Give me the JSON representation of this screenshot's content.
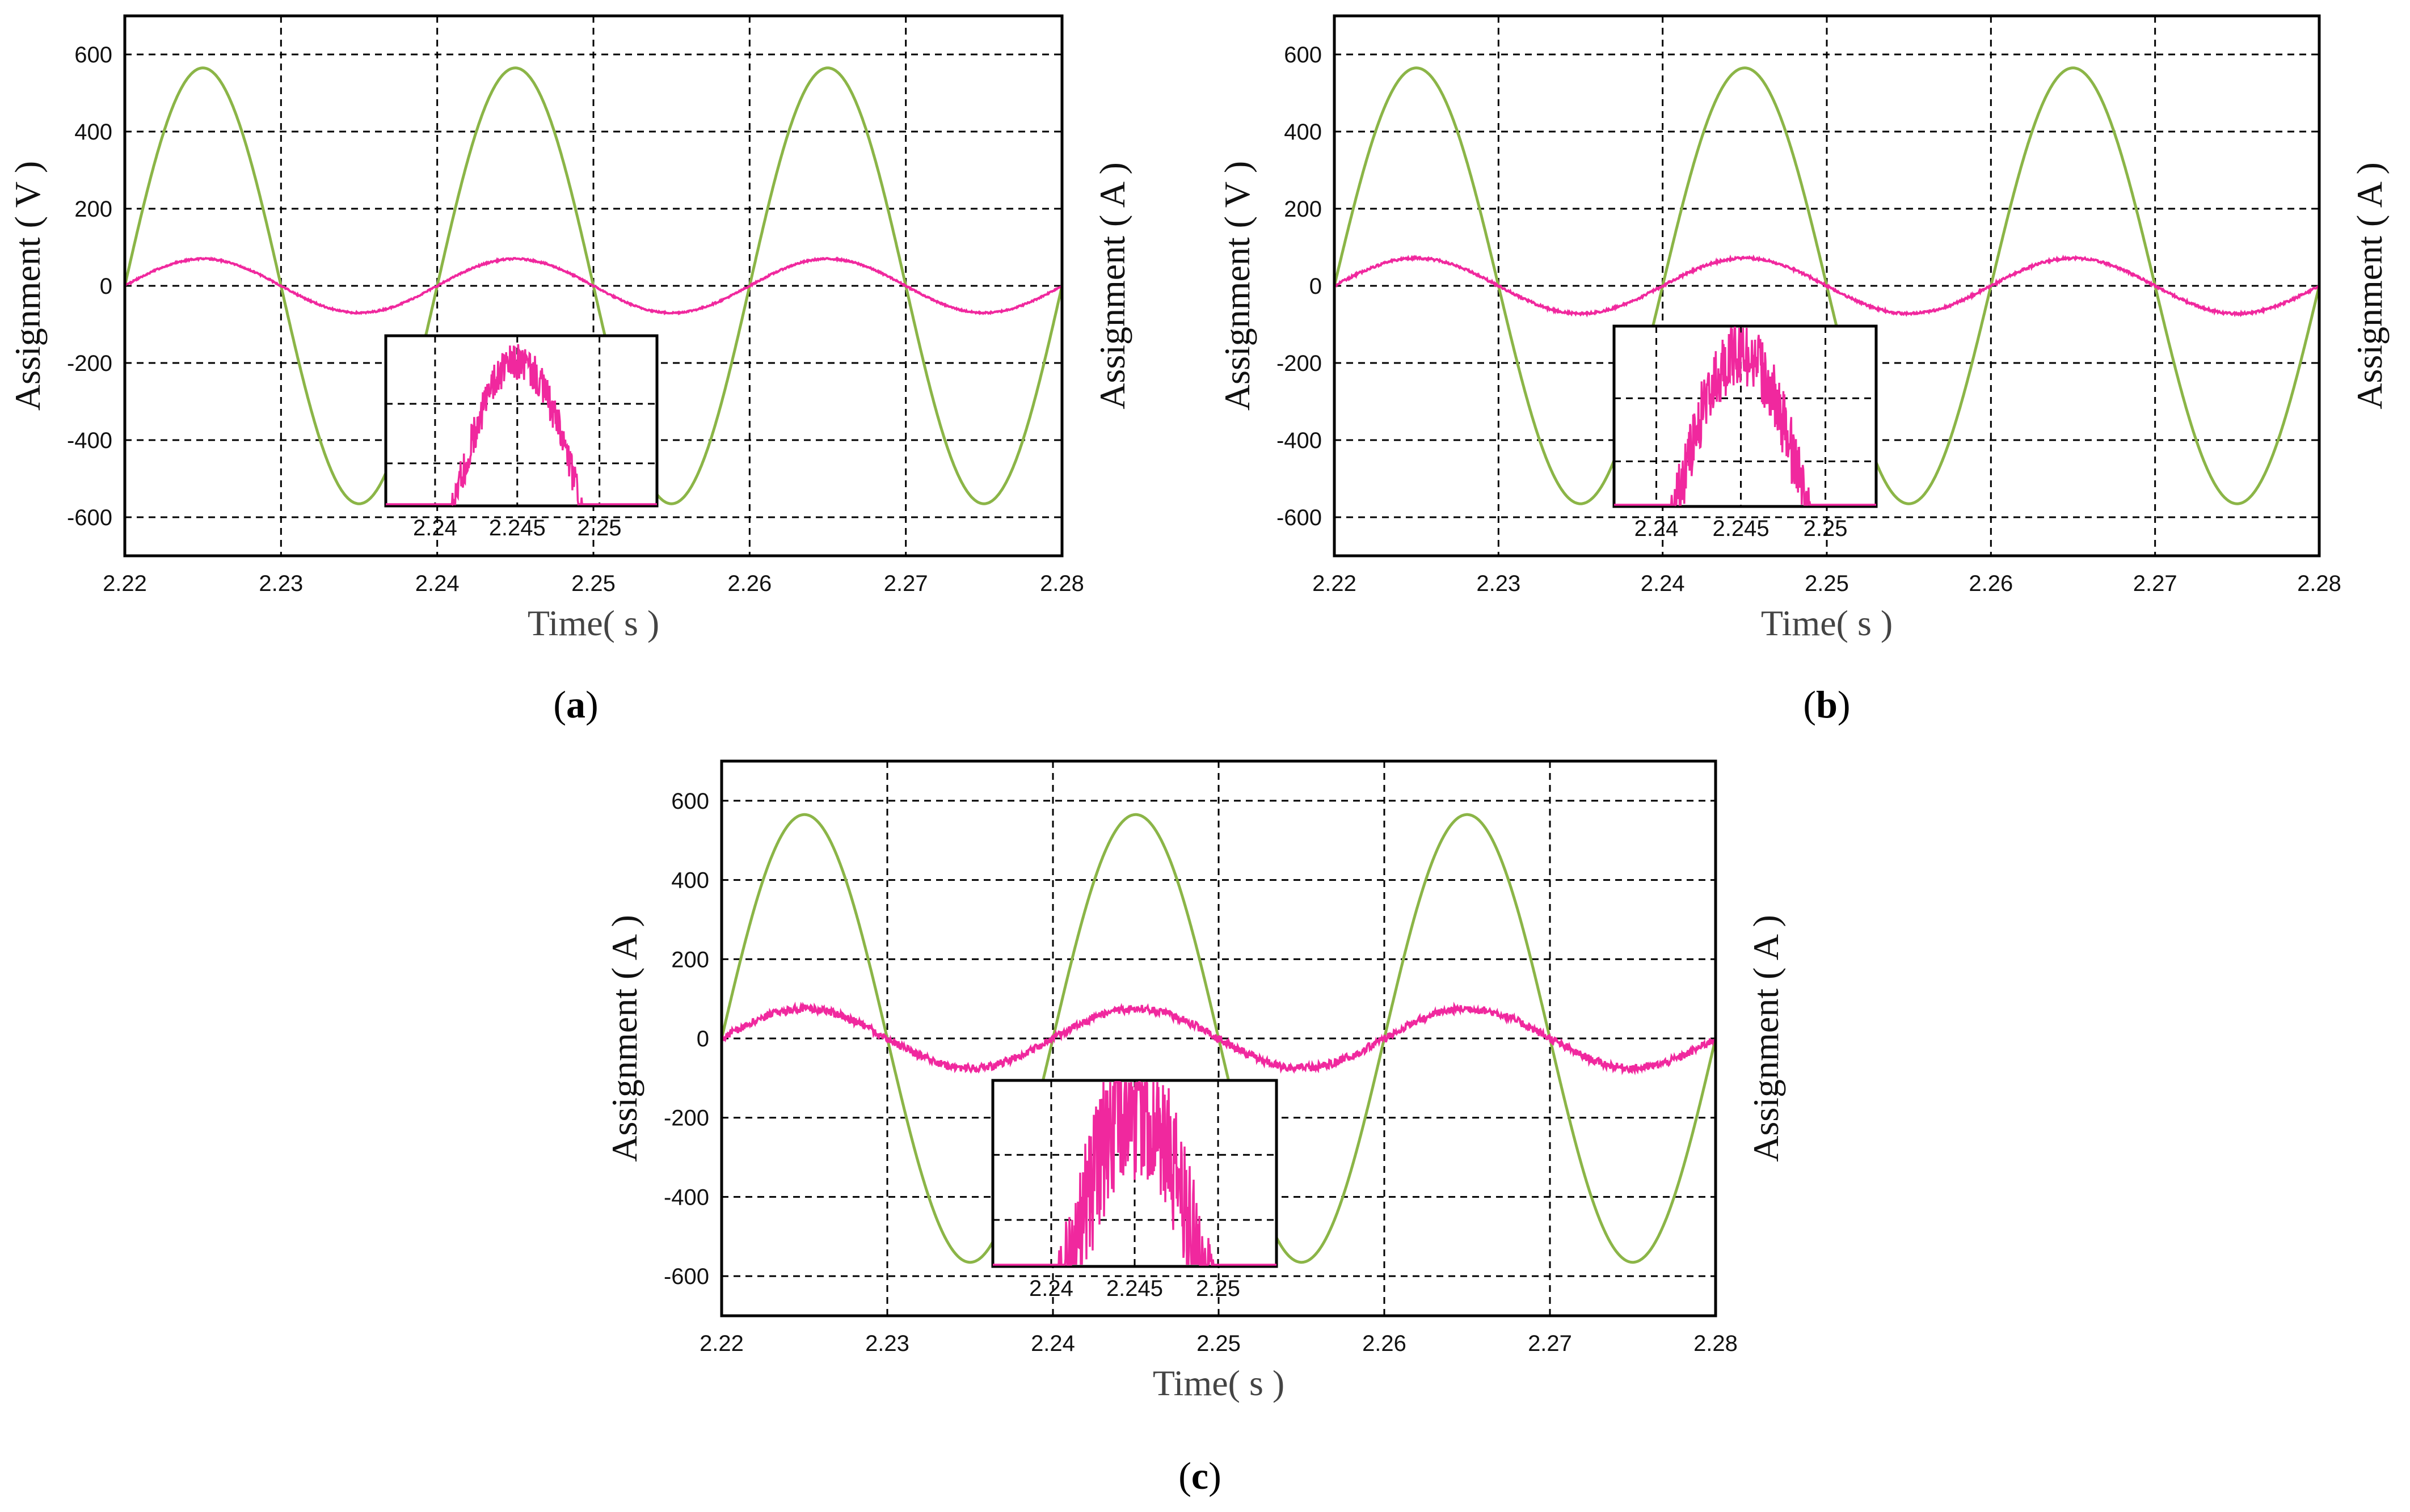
{
  "colors": {
    "voltage_series": "#8BB547",
    "current_series": "#F0289E",
    "grid": "#000000",
    "frame": "#000000"
  },
  "chart_data": [
    {
      "type": "line",
      "panel_label": "(a)",
      "panel_label_letter": "a",
      "xlabel": "Time( s )",
      "ylabel_left": "Assignment ( V )",
      "ylabel_right": "Assignment ( A )",
      "xlim": [
        2.22,
        2.28
      ],
      "ylim": [
        -700,
        700
      ],
      "xticks": [
        "2.22",
        "2.23",
        "2.24",
        "2.25",
        "2.26",
        "2.27",
        "2.28"
      ],
      "yticks": [
        "600",
        "400",
        "200",
        "0",
        "-200",
        "-400",
        "-600"
      ],
      "grid": true,
      "series": [
        {
          "key": "voltage",
          "amplitude": 565,
          "frequency_hz": 50,
          "phase_start": 2.22,
          "noise": 0
        },
        {
          "key": "current",
          "amplitude": 70,
          "frequency_hz": 50,
          "phase_start": 2.22,
          "noise": 2
        }
      ],
      "inset": {
        "xlim": [
          2.237,
          2.2535
        ],
        "xticks": [
          "2.24",
          "2.245",
          "2.25"
        ],
        "noise": 6
      }
    },
    {
      "type": "line",
      "panel_label": "(b)",
      "panel_label_letter": "b",
      "xlabel": "Time( s )",
      "ylabel_left": "Assignment ( V )",
      "ylabel_right": "Assignment ( A )",
      "xlim": [
        2.22,
        2.28
      ],
      "ylim": [
        -700,
        700
      ],
      "xticks": [
        "2.22",
        "2.23",
        "2.24",
        "2.25",
        "2.26",
        "2.27",
        "2.28"
      ],
      "yticks": [
        "600",
        "400",
        "200",
        "0",
        "-200",
        "-400",
        "-600"
      ],
      "grid": true,
      "series": [
        {
          "key": "voltage",
          "amplitude": 565,
          "frequency_hz": 50,
          "phase_start": 2.22,
          "noise": 0
        },
        {
          "key": "current",
          "amplitude": 72,
          "frequency_hz": 50,
          "phase_start": 2.22,
          "noise": 3
        }
      ],
      "inset": {
        "xlim": [
          2.2375,
          2.253
        ],
        "xticks": [
          "2.24",
          "2.245",
          "2.25"
        ],
        "noise": 10
      }
    },
    {
      "type": "line",
      "panel_label": "(c)",
      "panel_label_letter": "c",
      "xlabel": "Time( s )",
      "ylabel_left": "Assignment ( A )",
      "ylabel_right": "Assignment ( A )",
      "xlim": [
        2.22,
        2.28
      ],
      "ylim": [
        -700,
        700
      ],
      "xticks": [
        "2.22",
        "2.23",
        "2.24",
        "2.25",
        "2.26",
        "2.27",
        "2.28"
      ],
      "yticks": [
        "600",
        "400",
        "200",
        "0",
        "-200",
        "-400",
        "-600"
      ],
      "grid": true,
      "series": [
        {
          "key": "voltage",
          "amplitude": 565,
          "frequency_hz": 50,
          "phase_start": 2.22,
          "noise": 0
        },
        {
          "key": "current",
          "amplitude": 75,
          "frequency_hz": 50,
          "phase_start": 2.22,
          "noise": 10
        }
      ],
      "inset": {
        "xlim": [
          2.2365,
          2.2535
        ],
        "xticks": [
          "2.24",
          "2.245",
          "2.25"
        ],
        "noise": 22
      }
    }
  ]
}
